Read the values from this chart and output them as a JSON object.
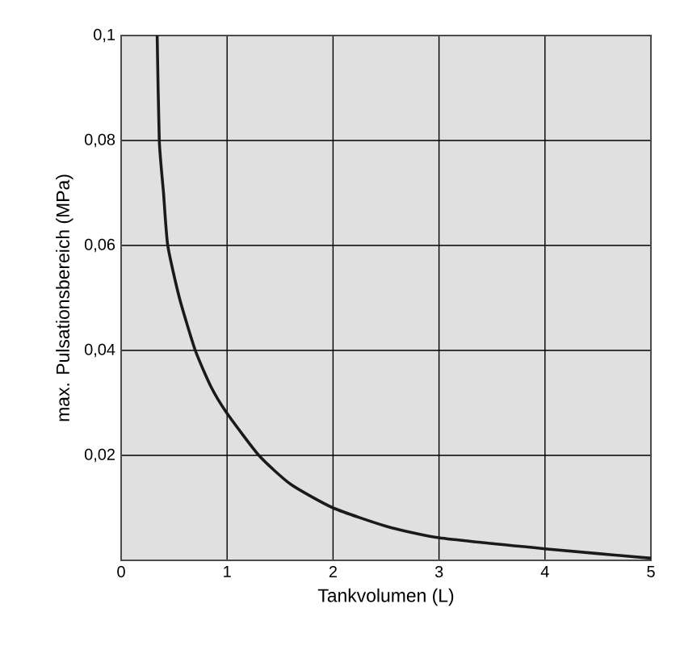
{
  "chart_data": {
    "type": "line",
    "xlabel": "Tankvolumen (L)",
    "ylabel": "max. Pulsationsbereich (MPa)",
    "xlim": [
      0,
      5
    ],
    "ylim": [
      0,
      0.1
    ],
    "xticks": [
      0,
      1,
      2,
      3,
      4,
      5
    ],
    "yticks": [
      {
        "value": 0.02,
        "label": "0,02"
      },
      {
        "value": 0.04,
        "label": "0,04"
      },
      {
        "value": 0.06,
        "label": "0,06"
      },
      {
        "value": 0.08,
        "label": "0,08"
      },
      {
        "value": 0.1,
        "label": "0,1"
      }
    ],
    "grid": true,
    "marker": "none",
    "line_style": "solid",
    "series": [
      {
        "color": "#1a1a1a",
        "x": [
          0.34,
          0.36,
          0.4,
          0.44,
          0.55,
          0.7,
          0.85,
          1,
          1.3,
          1.6,
          2,
          2.5,
          3,
          4,
          5
        ],
        "values": [
          0.1,
          0.08,
          0.07,
          0.06,
          0.05,
          0.04,
          0.033,
          0.028,
          0.02,
          0.0145,
          0.01,
          0.0065,
          0.0043,
          0.0022,
          0.0004
        ]
      }
    ]
  }
}
